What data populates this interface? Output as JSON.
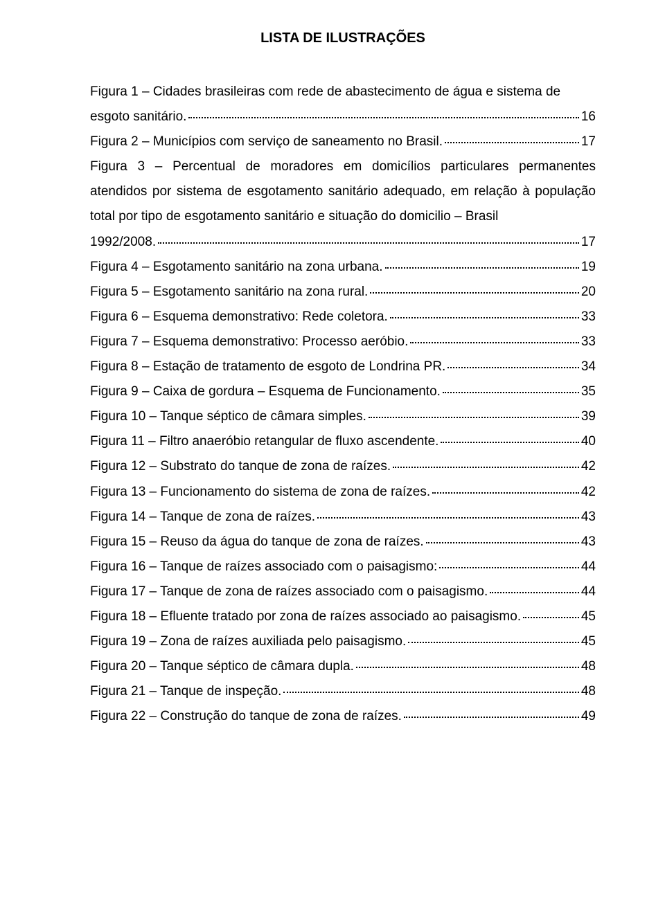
{
  "title": "LISTA DE ILUSTRAÇÕES",
  "entries": [
    {
      "pre": "Figura 1 – Cidades brasileiras com rede de abastecimento de água e sistema de",
      "last": "esgoto sanitário.",
      "page": "16"
    },
    {
      "last": "Figura 2 – Municípios com serviço de saneamento no Brasil.",
      "page": "17"
    },
    {
      "pre": "Figura 3 – Percentual de moradores em domicílios particulares permanentes atendidos por sistema de esgotamento sanitário adequado, em relação à população total por tipo de esgotamento sanitário e situação do domicilio – Brasil",
      "last": "1992/2008.",
      "page": "17"
    },
    {
      "last": "Figura 4 – Esgotamento sanitário na zona urbana.",
      "page": "19"
    },
    {
      "last": "Figura 5 – Esgotamento sanitário na zona rural.",
      "page": "20"
    },
    {
      "last": "Figura 6 – Esquema demonstrativo: Rede coletora.",
      "page": "33"
    },
    {
      "last": "Figura 7 – Esquema demonstrativo: Processo aeróbio.",
      "page": "33"
    },
    {
      "last": "Figura 8 – Estação de tratamento de esgoto de Londrina PR.",
      "page": "34"
    },
    {
      "last": "Figura 9 – Caixa de gordura – Esquema de Funcionamento.",
      "page": "35"
    },
    {
      "last": "Figura 10 – Tanque séptico de câmara simples.",
      "page": "39"
    },
    {
      "last": "Figura 11 – Filtro anaeróbio retangular de fluxo ascendente.",
      "page": "40"
    },
    {
      "last": "Figura 12 – Substrato do tanque de zona de raízes.",
      "page": "42"
    },
    {
      "last": "Figura 13 – Funcionamento do sistema de zona de raízes.",
      "page": "42"
    },
    {
      "last": "Figura 14 – Tanque de zona de raízes.",
      "page": "43"
    },
    {
      "last": "Figura 15 – Reuso da água do tanque de zona de raízes.",
      "page": "43"
    },
    {
      "last": "Figura 16 – Tanque de raízes associado com o paisagismo:",
      "page": "44"
    },
    {
      "last": "Figura 17 – Tanque de zona de raízes associado com o paisagismo.",
      "page": "44"
    },
    {
      "last": "Figura 18 – Efluente tratado por zona de raízes associado ao paisagismo.",
      "page": "45"
    },
    {
      "last": "Figura 19 – Zona de raízes auxiliada pelo paisagismo.",
      "page": "45"
    },
    {
      "last": "Figura 20 – Tanque séptico de câmara dupla.",
      "page": "48"
    },
    {
      "last": "Figura 21 – Tanque de inspeção.",
      "page": "48"
    },
    {
      "last": "Figura 22 – Construção do tanque de zona de raízes.",
      "page": "49"
    }
  ]
}
